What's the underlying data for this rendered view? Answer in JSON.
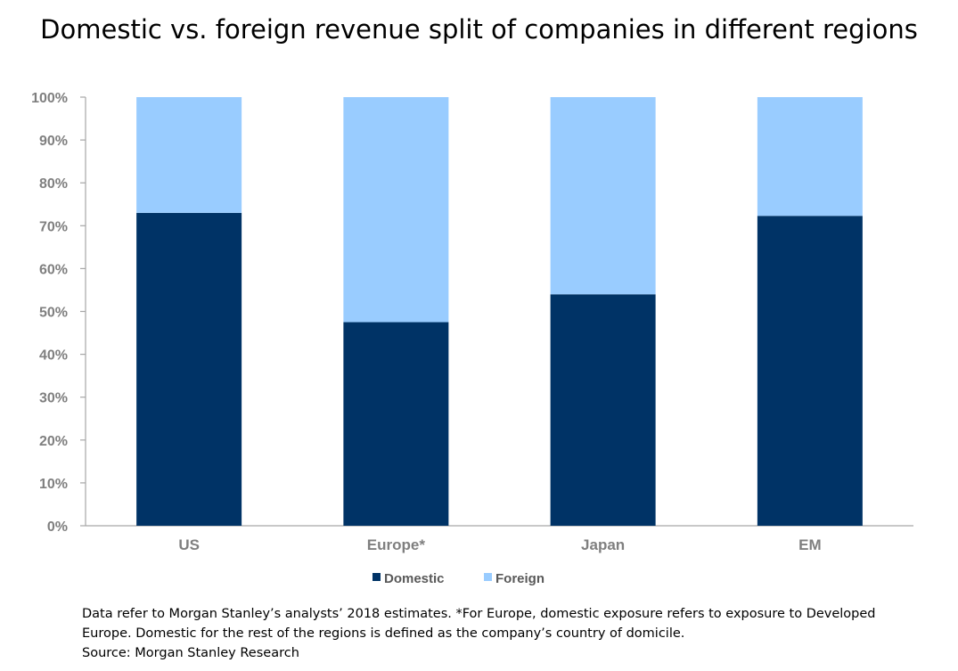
{
  "chart_data": {
    "type": "bar",
    "stacked": true,
    "title": "Domestic vs. foreign revenue split of companies in different regions",
    "categories": [
      "US",
      "Europe*",
      "Japan",
      "EM"
    ],
    "series": [
      {
        "name": "Domestic",
        "values": [
          73,
          47.5,
          54,
          72.3
        ],
        "color": "#003366"
      },
      {
        "name": "Foreign",
        "values": [
          27,
          52.5,
          46,
          27.7
        ],
        "color": "#99ccff"
      }
    ],
    "yticks": [
      "0%",
      "10%",
      "20%",
      "30%",
      "40%",
      "50%",
      "60%",
      "70%",
      "80%",
      "90%",
      "100%"
    ],
    "ylim": [
      0,
      100
    ],
    "grid": false,
    "legend": "bottom-center"
  },
  "footnote": {
    "line1": "Data refer to Morgan Stanley’s analysts’ 2018 estimates. *For Europe, domestic exposure refers to exposure to Developed",
    "line2": "Europe. Domestic for the rest of the regions is defined as the company’s country of domicile.",
    "source": "Source: Morgan Stanley Research"
  }
}
